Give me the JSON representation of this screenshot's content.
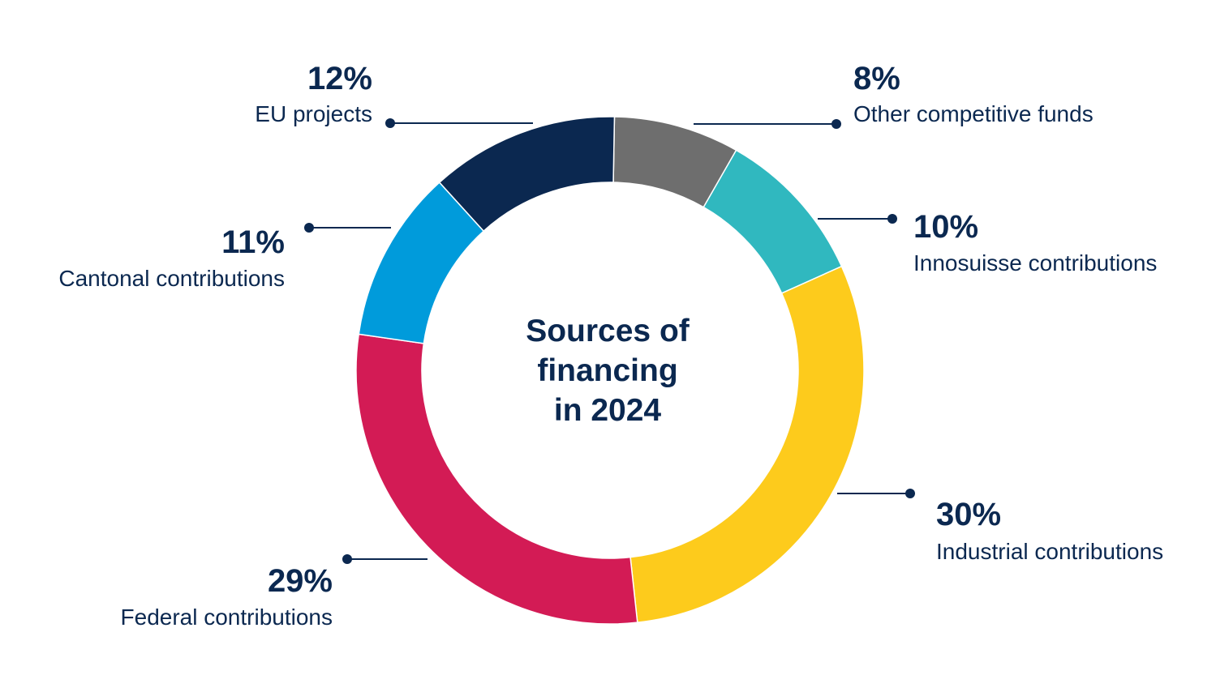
{
  "chart_data": {
    "type": "pie",
    "title": "Sources of financing in 2024",
    "title_lines": [
      "Sources of",
      "financing",
      "in 2024"
    ],
    "unit": "%",
    "slices": [
      {
        "label": "Other competitive funds",
        "value": 8,
        "value_label": "8%",
        "color": "#6e6e6e"
      },
      {
        "label": "Innosuisse contributions",
        "value": 10,
        "value_label": "10%",
        "color": "#30b8bf"
      },
      {
        "label": "Industrial contributions",
        "value": 30,
        "value_label": "30%",
        "color": "#fdcb1c"
      },
      {
        "label": "Federal contributions",
        "value": 29,
        "value_label": "29%",
        "color": "#d31b55"
      },
      {
        "label": "Cantonal contributions",
        "value": 11,
        "value_label": "11%",
        "color": "#009bdb"
      },
      {
        "label": "EU projects",
        "value": 12,
        "value_label": "12%",
        "color": "#0b2850"
      }
    ],
    "text_color": "#0b2850",
    "leader_color": "#0b2850"
  }
}
